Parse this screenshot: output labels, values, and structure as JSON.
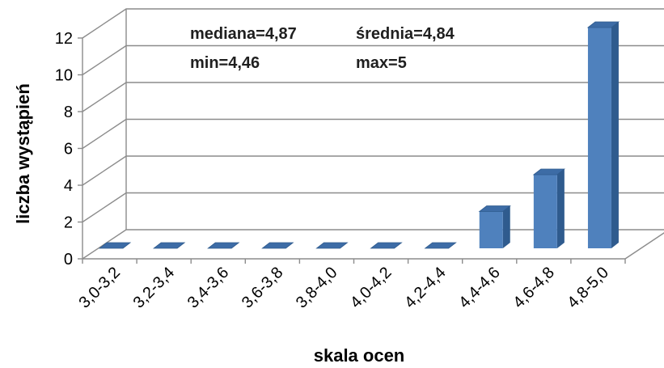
{
  "chart_data": {
    "type": "bar",
    "xlabel": "skala ocen",
    "ylabel": "liczba wystąpień",
    "categories": [
      "3,0-3,2",
      "3,2-3,4",
      "3,4-3,6",
      "3,6-3,8",
      "3,8-4,0",
      "4,0-4,2",
      "4,2-4,4",
      "4,4-4,6",
      "4,6-4,8",
      "4,8-5,0"
    ],
    "values": [
      0,
      0,
      0,
      0,
      0,
      0,
      0,
      2,
      4,
      12
    ],
    "ylim": [
      0,
      12
    ],
    "yticks": [
      "0",
      "2",
      "4",
      "6",
      "8",
      "10",
      "12"
    ],
    "grid": true,
    "annotations": {
      "median": "mediana=4,87",
      "mean": "średnia=4,84",
      "min": "min=4,46",
      "max": "max=5"
    },
    "colors": {
      "bar_front": "#4f81bd",
      "bar_side": "#2f5b8e",
      "bar_top": "#3d6ca6",
      "grid": "#8c8c8c"
    }
  }
}
